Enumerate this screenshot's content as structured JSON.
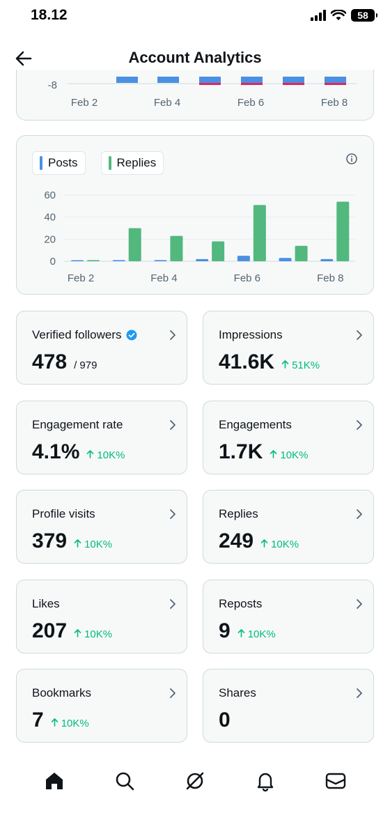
{
  "status_bar": {
    "time": "18.12",
    "battery": "58"
  },
  "header": {
    "title": "Account Analytics"
  },
  "top_chart": {
    "y_tick": "-8",
    "x_ticks": [
      "Feb 2",
      "Feb 4",
      "Feb 6",
      "Feb 8"
    ]
  },
  "chart_data": {
    "type": "bar",
    "categories": [
      "Feb 2",
      "Feb 3",
      "Feb 4",
      "Feb 5",
      "Feb 6",
      "Feb 7",
      "Feb 8"
    ],
    "x_tick_labels": [
      "Feb 2",
      "Feb 4",
      "Feb 6",
      "Feb 8"
    ],
    "series": [
      {
        "name": "Posts",
        "color": "#4a90e2",
        "values": [
          0,
          1,
          1,
          2,
          5,
          3,
          2
        ]
      },
      {
        "name": "Replies",
        "color": "#52b87e",
        "values": [
          1,
          30,
          23,
          18,
          51,
          14,
          54
        ]
      }
    ],
    "y_ticks": [
      0,
      20,
      40,
      60
    ],
    "ylim": [
      0,
      60
    ],
    "grid": true,
    "legend": "top-left"
  },
  "metrics": [
    {
      "label": "Verified followers",
      "verified_icon": true,
      "value": "478",
      "sub": "/ 979"
    },
    {
      "label": "Impressions",
      "value": "41.6K",
      "change": "51K%"
    },
    {
      "label": "Engagement rate",
      "value": "4.1%",
      "change": "10K%"
    },
    {
      "label": "Engagements",
      "value": "1.7K",
      "change": "10K%"
    },
    {
      "label": "Profile visits",
      "value": "379",
      "change": "10K%"
    },
    {
      "label": "Replies",
      "value": "249",
      "change": "10K%"
    },
    {
      "label": "Likes",
      "value": "207",
      "change": "10K%"
    },
    {
      "label": "Reposts",
      "value": "9",
      "change": "10K%"
    },
    {
      "label": "Bookmarks",
      "value": "7",
      "change": "10K%"
    },
    {
      "label": "Shares",
      "value": "0"
    }
  ],
  "nav": [
    "home-icon",
    "search-icon",
    "grok-icon",
    "bell-icon",
    "mail-icon"
  ],
  "colors": {
    "up": "#00ba7c",
    "verified": "#1d9bf0",
    "negative": "#e0245e"
  }
}
